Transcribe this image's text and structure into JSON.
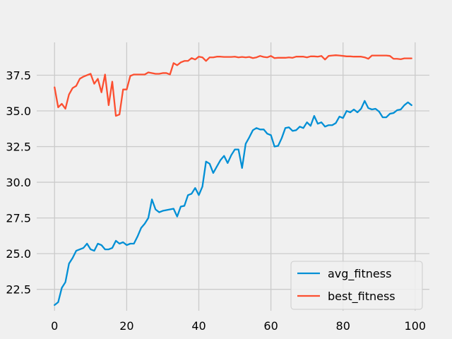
{
  "chart_data": {
    "type": "line",
    "title": "",
    "xlabel": "",
    "ylabel": "",
    "xlim": [
      -4.95,
      103.95
    ],
    "ylim": [
      21.0,
      39.8
    ],
    "xticks": [
      0,
      20,
      40,
      60,
      80,
      100
    ],
    "xtick_labels": [
      "0",
      "20",
      "40",
      "60",
      "80",
      "100"
    ],
    "yticks": [
      22.5,
      25.0,
      27.5,
      30.0,
      32.5,
      35.0,
      37.5
    ],
    "ytick_labels": [
      "22.5",
      "25.0",
      "27.5",
      "30.0",
      "32.5",
      "35.0",
      "37.5"
    ],
    "grid": true,
    "legend_position": "lower right",
    "x": [
      0,
      1,
      2,
      3,
      4,
      5,
      6,
      7,
      8,
      9,
      10,
      11,
      12,
      13,
      14,
      15,
      16,
      17,
      18,
      19,
      20,
      21,
      22,
      23,
      24,
      25,
      26,
      27,
      28,
      29,
      30,
      31,
      32,
      33,
      34,
      35,
      36,
      37,
      38,
      39,
      40,
      41,
      42,
      43,
      44,
      45,
      46,
      47,
      48,
      49,
      50,
      51,
      52,
      53,
      54,
      55,
      56,
      57,
      58,
      59,
      60,
      61,
      62,
      63,
      64,
      65,
      66,
      67,
      68,
      69,
      70,
      71,
      72,
      73,
      74,
      75,
      76,
      77,
      78,
      79,
      80,
      81,
      82,
      83,
      84,
      85,
      86,
      87,
      88,
      89,
      90,
      91,
      92,
      93,
      94,
      95,
      96,
      97,
      98,
      99
    ],
    "series": [
      {
        "name": "avg_fitness",
        "color": "#008fd5",
        "values": [
          21.4,
          21.6,
          22.6,
          23.0,
          24.3,
          24.7,
          25.2,
          25.3,
          25.4,
          25.7,
          25.3,
          25.2,
          25.7,
          25.6,
          25.3,
          25.3,
          25.4,
          25.9,
          25.7,
          25.8,
          25.6,
          25.7,
          25.7,
          26.2,
          26.8,
          27.1,
          27.5,
          28.8,
          28.1,
          27.9,
          28.0,
          28.05,
          28.1,
          28.15,
          27.6,
          28.3,
          28.35,
          29.1,
          29.2,
          29.6,
          29.1,
          29.7,
          31.45,
          31.3,
          30.65,
          31.1,
          31.55,
          31.85,
          31.35,
          31.9,
          32.3,
          32.3,
          31.0,
          32.7,
          33.15,
          33.65,
          33.8,
          33.7,
          33.7,
          33.4,
          33.3,
          32.5,
          32.55,
          33.1,
          33.8,
          33.85,
          33.6,
          33.65,
          33.9,
          33.8,
          34.2,
          33.95,
          34.65,
          34.1,
          34.2,
          33.9,
          34.0,
          34.0,
          34.15,
          34.6,
          34.5,
          35.0,
          34.9,
          35.1,
          34.9,
          35.15,
          35.7,
          35.2,
          35.1,
          35.15,
          34.95,
          34.55,
          34.55,
          34.8,
          34.85,
          35.05,
          35.1,
          35.4,
          35.6,
          35.4
        ]
      },
      {
        "name": "best_fitness",
        "color": "#fc4f30",
        "values": [
          36.65,
          35.25,
          35.5,
          35.15,
          36.15,
          36.6,
          36.75,
          37.25,
          37.4,
          37.5,
          37.6,
          36.9,
          37.25,
          36.3,
          37.55,
          35.4,
          37.05,
          34.65,
          34.75,
          36.5,
          36.5,
          37.45,
          37.55,
          37.55,
          37.55,
          37.55,
          37.7,
          37.65,
          37.6,
          37.6,
          37.65,
          37.65,
          37.55,
          38.35,
          38.2,
          38.4,
          38.5,
          38.5,
          38.7,
          38.6,
          38.8,
          38.75,
          38.5,
          38.75,
          38.75,
          38.8,
          38.8,
          38.78,
          38.78,
          38.78,
          38.8,
          38.75,
          38.78,
          38.75,
          38.78,
          38.7,
          38.75,
          38.85,
          38.78,
          38.75,
          38.85,
          38.7,
          38.72,
          38.72,
          38.72,
          38.75,
          38.72,
          38.8,
          38.8,
          38.8,
          38.75,
          38.82,
          38.82,
          38.8,
          38.85,
          38.6,
          38.85,
          38.88,
          38.9,
          38.88,
          38.85,
          38.82,
          38.82,
          38.8,
          38.8,
          38.8,
          38.75,
          38.65,
          38.88,
          38.88,
          38.88,
          38.88,
          38.88,
          38.85,
          38.65,
          38.65,
          38.62,
          38.68,
          38.68,
          38.68
        ]
      }
    ]
  }
}
